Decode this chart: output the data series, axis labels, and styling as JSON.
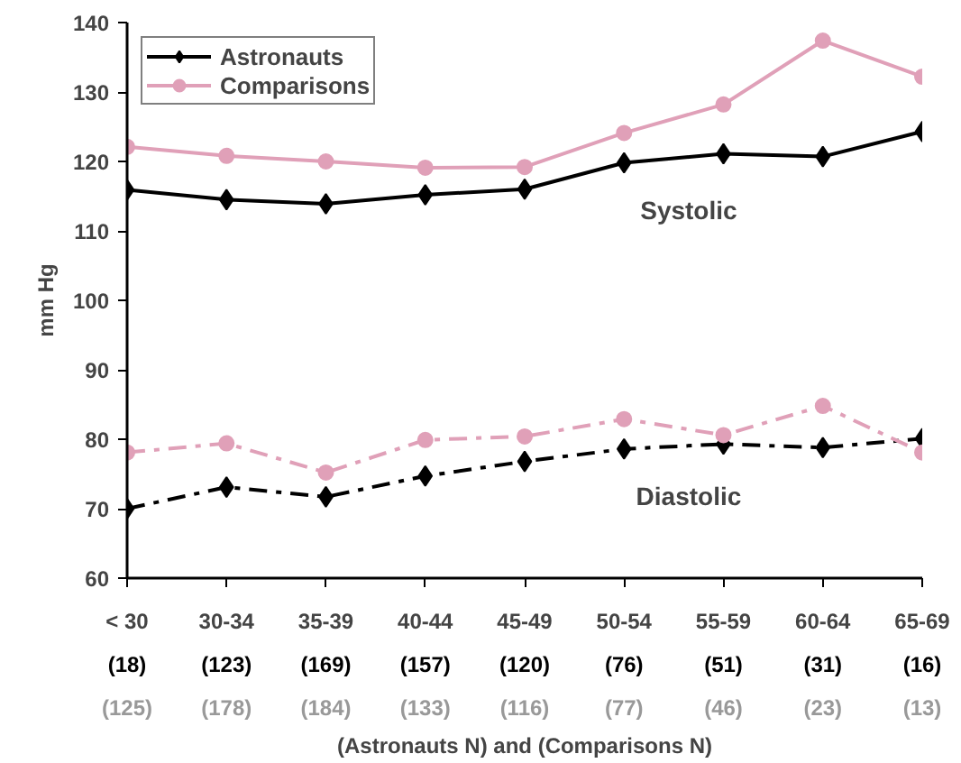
{
  "chart_data": {
    "type": "line",
    "ylabel": "mm Hg",
    "xlabel": "(Astronauts N) and (Comparisons N)",
    "categories": [
      "< 30",
      "30-34",
      "35-39",
      "40-44",
      "45-49",
      "50-54",
      "55-59",
      "60-64",
      "65-69"
    ],
    "ylim": [
      60,
      140
    ],
    "yticks": [
      60,
      70,
      80,
      90,
      100,
      110,
      120,
      130,
      140
    ],
    "grid": false,
    "legend": "top left",
    "series": [
      {
        "name": "Astronauts",
        "color": "#000000",
        "marker": "diamond",
        "line_style": "solid",
        "values": [
          115.9,
          114.5,
          113.9,
          115.2,
          116.0,
          119.8,
          121.1,
          120.7,
          124.3
        ]
      },
      {
        "name": "Comparisons",
        "color": "#e0a0b8",
        "marker": "circle",
        "line_style": "solid",
        "values": [
          122.1,
          120.8,
          120.0,
          119.1,
          119.2,
          124.1,
          128.2,
          137.4,
          132.2
        ]
      },
      {
        "color": "#000000",
        "marker": "diamond",
        "line_style": "dashdot",
        "values": [
          70.0,
          73.1,
          71.7,
          74.7,
          76.8,
          78.6,
          79.3,
          78.8,
          80.1
        ]
      },
      {
        "color": "#e0a0b8",
        "marker": "circle",
        "line_style": "dashdot",
        "values": [
          78.1,
          79.4,
          75.2,
          79.9,
          80.4,
          82.9,
          80.6,
          84.8,
          78.1
        ]
      }
    ],
    "annotations": [
      "Systolic",
      "Diastolic",
      "(18)",
      "(125)",
      "(123)",
      "(178)",
      "(169)",
      "(184)",
      "(157)",
      "(133)",
      "(120)",
      "(116)",
      "(76)",
      "(77)",
      "(51)",
      "(46)",
      "(31)",
      "(23)",
      "(16)",
      "(13)"
    ]
  }
}
